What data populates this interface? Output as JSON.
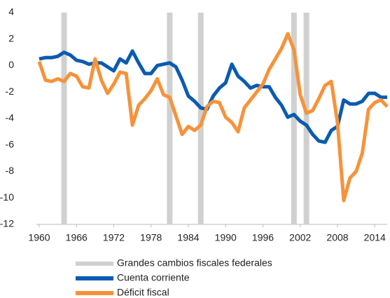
{
  "chart_data": {
    "type": "line",
    "x": [
      1960,
      1961,
      1962,
      1963,
      1964,
      1965,
      1966,
      1967,
      1968,
      1969,
      1970,
      1971,
      1972,
      1973,
      1974,
      1975,
      1976,
      1977,
      1978,
      1979,
      1980,
      1981,
      1982,
      1983,
      1984,
      1985,
      1986,
      1987,
      1988,
      1989,
      1990,
      1991,
      1992,
      1993,
      1994,
      1995,
      1996,
      1997,
      1998,
      1999,
      2000,
      2001,
      2002,
      2003,
      2004,
      2005,
      2006,
      2007,
      2008,
      2009,
      2010,
      2011,
      2012,
      2013,
      2014,
      2015,
      2016
    ],
    "series": [
      {
        "name": "Cuenta corriente",
        "color": "#0b5bb0",
        "values": [
          0.5,
          0.6,
          0.6,
          0.7,
          1.0,
          0.8,
          0.4,
          0.3,
          0.1,
          0.2,
          0.2,
          -0.1,
          -0.4,
          0.5,
          0.2,
          1.1,
          0.2,
          -0.6,
          -0.6,
          0.0,
          0.1,
          0.2,
          -0.1,
          -1.1,
          -2.3,
          -2.7,
          -3.2,
          -3.3,
          -2.3,
          -1.7,
          -1.3,
          0.1,
          -0.8,
          -1.2,
          -1.7,
          -1.5,
          -1.6,
          -1.6,
          -2.4,
          -3.0,
          -3.9,
          -3.7,
          -4.2,
          -4.5,
          -5.2,
          -5.7,
          -5.8,
          -4.9,
          -4.6,
          -2.6,
          -2.9,
          -2.9,
          -2.7,
          -2.1,
          -2.1,
          -2.4,
          -2.4
        ]
      },
      {
        "name": "Déficit fiscal",
        "color": "#f7923a",
        "values": [
          0.3,
          -1.1,
          -1.2,
          -1.0,
          -1.2,
          -0.6,
          -0.8,
          -1.6,
          -1.7,
          0.5,
          -1.1,
          -2.1,
          -1.4,
          -0.5,
          -0.6,
          -4.5,
          -3.0,
          -2.5,
          -1.9,
          -1.0,
          -2.2,
          -2.4,
          -3.8,
          -5.2,
          -4.6,
          -4.9,
          -4.5,
          -3.1,
          -2.7,
          -2.8,
          -3.9,
          -4.3,
          -5.0,
          -3.2,
          -2.6,
          -2.0,
          -1.4,
          -0.3,
          0.5,
          1.3,
          2.4,
          1.2,
          -2.2,
          -3.6,
          -3.4,
          -2.5,
          -1.5,
          -1.2,
          -4.3,
          -10.2,
          -8.5,
          -8.0,
          -6.6,
          -3.3,
          -2.8,
          -2.6,
          -3.1
        ]
      }
    ],
    "bands": {
      "name": "Grandes cambios fiscales federales",
      "color": "#d0d0d0",
      "x": [
        1964,
        1981,
        1986,
        2001,
        2003
      ]
    },
    "xlim": [
      1960,
      2016
    ],
    "xticks": [
      1960,
      1966,
      1972,
      1978,
      1984,
      1990,
      1996,
      2002,
      2008,
      2014
    ],
    "ylim": [
      -12,
      4
    ],
    "yticks": [
      -12,
      -10,
      -8,
      -6,
      -4,
      -2,
      0,
      2,
      4
    ]
  }
}
